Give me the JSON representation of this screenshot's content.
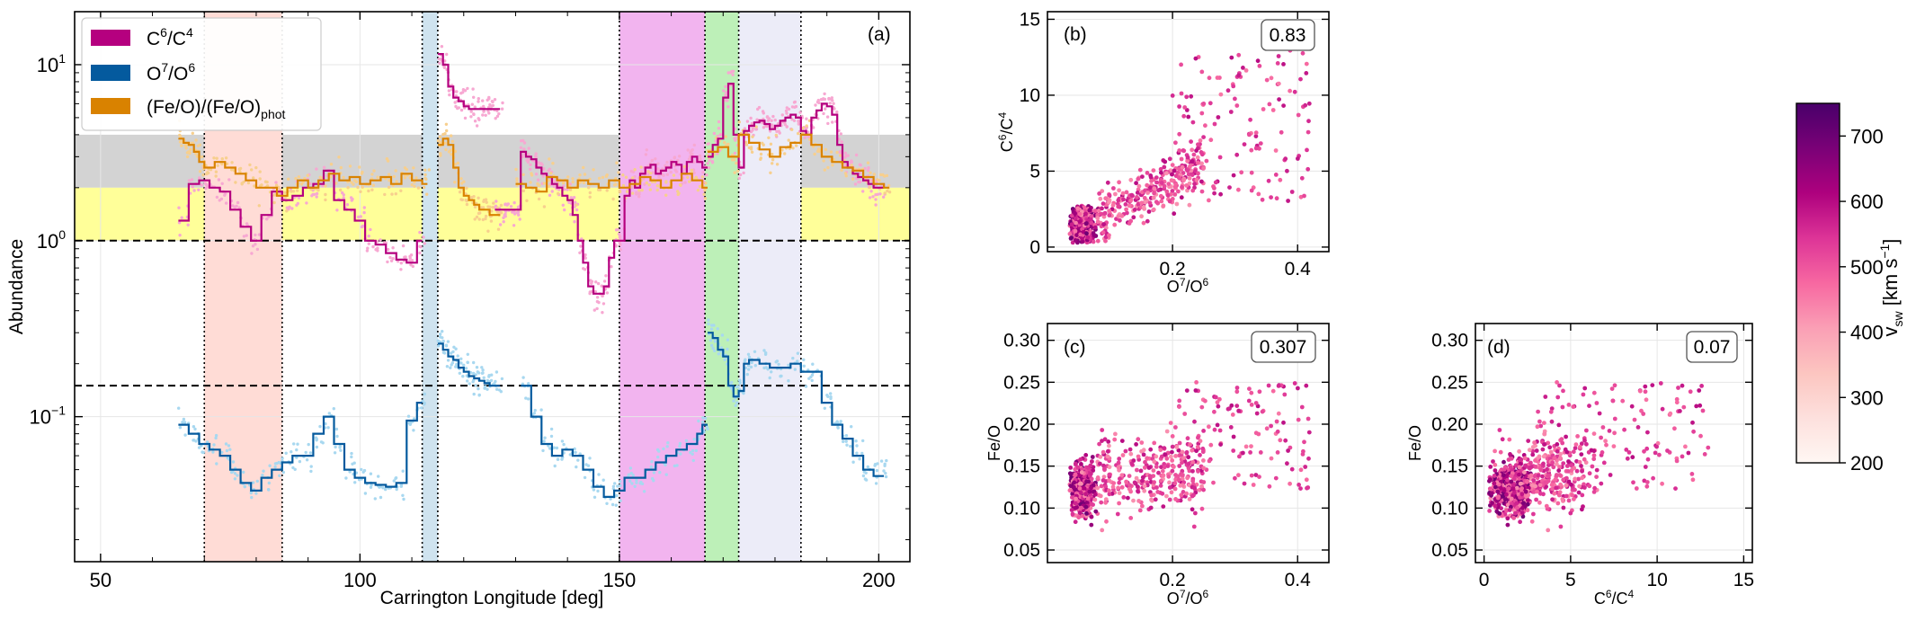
{
  "chart_data": [
    {
      "panel_label": "(a)",
      "type": "line",
      "xlabel": "Carrington Longitude [deg]",
      "ylabel": "Abundance",
      "xlim": [
        45,
        206
      ],
      "ylim": [
        0.015,
        20
      ],
      "yscale": "log",
      "xticks": [
        "50",
        "100",
        "150",
        "200"
      ],
      "yticks": [
        {
          "value": 0.1,
          "base": "10",
          "exp": "−1"
        },
        {
          "value": 1,
          "base": "10",
          "exp": "0"
        },
        {
          "value": 10,
          "base": "10",
          "exp": "1"
        }
      ],
      "legend": {
        "placement": "top-left",
        "entries": [
          {
            "base": "C",
            "sup1": "6",
            "mid": "/C",
            "sup2": "4",
            "sub": "",
            "color": "#b5007f"
          },
          {
            "base": "O",
            "sup1": "7",
            "mid": "/O",
            "sup2": "6",
            "sub": "",
            "color": "#045a9e"
          },
          {
            "base": "(Fe/O)/(Fe/O)",
            "sup1": "",
            "mid": "",
            "sup2": "",
            "sub": "phot",
            "color": "#d98200"
          }
        ]
      },
      "hbands": [
        {
          "y0": 2,
          "y1": 4,
          "color": "#d3d3d3"
        },
        {
          "y0": 1,
          "y1": 2,
          "color": "#ffff99"
        }
      ],
      "hlines": [
        1,
        0.15
      ],
      "vbands": [
        {
          "x0": 70,
          "x1": 85,
          "color": "#ffdcd6"
        },
        {
          "x0": 112,
          "x1": 115,
          "color": "#cfe3ef"
        },
        {
          "x0": 150,
          "x1": 166.5,
          "color": "#f2b4ef"
        },
        {
          "x0": 166.5,
          "x1": 173,
          "color": "#bdf0b8"
        },
        {
          "x0": 173,
          "x1": 185,
          "color": "#ececf8"
        }
      ],
      "vlines": [
        70,
        85,
        112,
        115,
        150,
        166.5,
        173,
        185
      ],
      "series": [
        {
          "name": "C6/C4",
          "color": "#b5007f",
          "scatter_color": "#f7a8d2",
          "segments": [
            {
              "x": [
                65,
                67,
                69,
                71,
                73,
                75,
                77,
                79,
                81,
                83,
                85,
                87,
                89,
                91,
                93,
                95,
                97,
                99,
                101,
                103,
                105,
                107,
                109,
                111
              ],
              "y": [
                1.3,
                2.1,
                2.2,
                2.0,
                1.9,
                1.5,
                1.2,
                1.0,
                1.4,
                1.9,
                1.7,
                1.8,
                2.0,
                2.1,
                2.5,
                1.7,
                1.5,
                1.3,
                1.0,
                0.95,
                0.85,
                0.78,
                0.75,
                1.0
              ]
            },
            {
              "x": [
                115,
                116,
                117,
                118,
                119,
                120,
                121,
                122,
                123,
                124,
                125,
                126
              ],
              "y": [
                11.5,
                10.0,
                7.5,
                6.5,
                6.2,
                5.8,
                5.6,
                5.6,
                5.6,
                5.6,
                5.6,
                5.6
              ]
            },
            {
              "x": [
                126,
                127,
                128,
                129,
                130,
                131,
                132,
                133,
                134,
                135,
                136,
                137,
                138,
                139,
                140,
                141,
                142,
                143,
                144,
                145,
                146,
                147,
                148,
                149,
                150,
                151,
                152,
                153,
                154,
                155,
                156,
                157,
                158,
                159,
                160,
                161,
                162,
                163,
                164,
                165,
                166
              ],
              "y": [
                1.5,
                1.5,
                1.5,
                1.5,
                1.5,
                3.2,
                3.0,
                2.9,
                2.6,
                2.4,
                2.3,
                2.1,
                2.0,
                1.8,
                1.7,
                1.4,
                1.0,
                0.75,
                0.55,
                0.5,
                0.5,
                0.55,
                0.8,
                1.0,
                1.0,
                1.8,
                2.2,
                2.0,
                2.4,
                2.6,
                2.7,
                2.4,
                2.5,
                2.6,
                2.8,
                2.7,
                2.4,
                2.8,
                3.0,
                2.8,
                2.6
              ]
            },
            {
              "x": [
                167,
                168,
                169,
                170,
                171,
                172,
                173,
                174,
                175,
                176,
                177,
                178,
                179,
                180,
                181,
                182,
                183,
                184,
                185,
                186,
                187,
                188,
                189,
                190,
                191,
                192,
                193,
                194,
                195,
                196,
                197,
                198,
                199,
                200
              ],
              "y": [
                3.0,
                3.5,
                3.8,
                6.5,
                7.8,
                4.0,
                2.6,
                4.2,
                4.5,
                4.7,
                4.8,
                4.6,
                4.3,
                4.5,
                4.8,
                5.0,
                5.2,
                5.0,
                4.2,
                4.0,
                5.0,
                5.5,
                6.0,
                5.8,
                5.2,
                3.5,
                2.8,
                2.6,
                2.4,
                2.3,
                2.2,
                2.1,
                2.0,
                2.0
              ]
            }
          ]
        },
        {
          "name": "Fe/O",
          "color": "#d98200",
          "scatter_color": "#f7cf8e",
          "segments": [
            {
              "x": [
                65,
                66,
                67,
                68,
                69,
                70,
                72,
                74,
                76,
                78,
                80,
                82,
                84,
                86,
                88,
                90,
                92,
                94,
                96,
                98,
                100,
                102,
                104,
                106,
                108,
                110,
                112
              ],
              "y": [
                3.8,
                3.6,
                3.5,
                3.2,
                2.8,
                2.6,
                2.8,
                2.6,
                2.4,
                2.2,
                2.0,
                2.0,
                1.8,
                2.0,
                2.2,
                2.0,
                2.2,
                2.4,
                2.2,
                2.3,
                2.1,
                2.2,
                2.3,
                2.1,
                2.4,
                2.2,
                2.1
              ]
            },
            {
              "x": [
                115,
                116,
                117,
                118,
                119,
                120,
                121,
                122,
                123,
                124,
                125,
                126
              ],
              "y": [
                3.5,
                3.8,
                3.5,
                2.6,
                2.0,
                1.8,
                1.7,
                1.6,
                1.5,
                1.5,
                1.4,
                1.4
              ]
            },
            {
              "x": [
                130,
                132,
                134,
                136,
                138,
                140,
                142,
                144,
                146,
                148,
                150,
                152,
                154,
                156,
                158,
                160,
                162,
                164,
                166
              ],
              "y": [
                2.1,
                2.0,
                1.9,
                2.3,
                2.2,
                2.0,
                2.2,
                2.1,
                2.0,
                2.2,
                2.0,
                2.1,
                2.3,
                2.2,
                2.0,
                2.2,
                2.4,
                2.2,
                2.0
              ]
            },
            {
              "x": [
                167,
                169,
                171,
                173,
                175,
                177,
                179,
                181,
                183,
                185,
                187,
                189,
                191,
                193,
                195,
                197,
                199,
                201
              ],
              "y": [
                3.2,
                3.4,
                3.0,
                4.0,
                3.6,
                3.3,
                3.0,
                3.4,
                3.6,
                4.0,
                3.5,
                3.0,
                2.8,
                2.6,
                2.5,
                2.3,
                2.1,
                2.0
              ]
            }
          ]
        },
        {
          "name": "O7/O6",
          "color": "#045a9e",
          "scatter_color": "#a8d8f0",
          "segments": [
            {
              "x": [
                65,
                67,
                69,
                71,
                73,
                75,
                77,
                79,
                81,
                83,
                85,
                87,
                89,
                91,
                93,
                95,
                97,
                99,
                101,
                103,
                105,
                107,
                109,
                111
              ],
              "y": [
                0.09,
                0.08,
                0.07,
                0.065,
                0.06,
                0.05,
                0.042,
                0.038,
                0.045,
                0.05,
                0.055,
                0.06,
                0.06,
                0.08,
                0.1,
                0.07,
                0.05,
                0.045,
                0.042,
                0.041,
                0.04,
                0.042,
                0.095,
                0.12
              ]
            },
            {
              "x": [
                115,
                116,
                117,
                118,
                119,
                120,
                121,
                122,
                123,
                124,
                125,
                126
              ],
              "y": [
                0.26,
                0.24,
                0.22,
                0.21,
                0.19,
                0.18,
                0.17,
                0.165,
                0.16,
                0.155,
                0.15,
                0.15
              ]
            },
            {
              "x": [
                131,
                133,
                135,
                137,
                139,
                141,
                143,
                145,
                147,
                149,
                151,
                153,
                155,
                157,
                159,
                161,
                163,
                165,
                166
              ],
              "y": [
                0.15,
                0.1,
                0.07,
                0.06,
                0.065,
                0.06,
                0.05,
                0.04,
                0.035,
                0.038,
                0.045,
                0.045,
                0.05,
                0.055,
                0.06,
                0.065,
                0.07,
                0.08,
                0.09
              ]
            },
            {
              "x": [
                167,
                168,
                169,
                170,
                171,
                172,
                173,
                174,
                175,
                177,
                179,
                181,
                183,
                185,
                187,
                189,
                191,
                193,
                195,
                197,
                199,
                200
              ],
              "y": [
                0.3,
                0.28,
                0.24,
                0.22,
                0.15,
                0.13,
                0.14,
                0.2,
                0.21,
                0.2,
                0.19,
                0.19,
                0.2,
                0.18,
                0.18,
                0.12,
                0.09,
                0.075,
                0.06,
                0.05,
                0.046,
                0.046
              ]
            }
          ]
        }
      ]
    },
    {
      "panel_label": "(b)",
      "type": "scatter",
      "xlabel": "O7/O6",
      "xlabel_base": "O",
      "xlabel_sup1": "7",
      "xlabel_mid": "/O",
      "xlabel_sup2": "6",
      "ylabel_base": "C",
      "ylabel_sup1": "6",
      "ylabel_mid": "/C",
      "ylabel_sup2": "4",
      "xlim": [
        0.0,
        0.45
      ],
      "ylim": [
        -0.3,
        15.5
      ],
      "xticks": [
        0.2,
        0.4
      ],
      "xtick_labels": [
        "0.2",
        "0.4"
      ],
      "yticks": [
        0,
        5,
        10,
        15
      ],
      "ytick_labels": [
        "0",
        "5",
        "10",
        "15"
      ],
      "correlation": "0.83",
      "points_x_variable": "O7/O6",
      "points_y_variable": "C6/C4"
    },
    {
      "panel_label": "(c)",
      "type": "scatter",
      "xlabel": "O7/O6",
      "xlabel_base": "O",
      "xlabel_sup1": "7",
      "xlabel_mid": "/O",
      "xlabel_sup2": "6",
      "ylabel": "Fe/O",
      "xlim": [
        0.0,
        0.45
      ],
      "ylim": [
        0.035,
        0.32
      ],
      "xticks": [
        0.2,
        0.4
      ],
      "xtick_labels": [
        "0.2",
        "0.4"
      ],
      "yticks": [
        0.05,
        0.1,
        0.15,
        0.2,
        0.25,
        0.3
      ],
      "ytick_labels": [
        "0.05",
        "0.10",
        "0.15",
        "0.20",
        "0.25",
        "0.30"
      ],
      "correlation": "0.307"
    },
    {
      "panel_label": "(d)",
      "type": "scatter",
      "xlabel": "C6/C4",
      "xlabel_base": "C",
      "xlabel_sup1": "6",
      "xlabel_mid": "/C",
      "xlabel_sup2": "4",
      "ylabel": "Fe/O",
      "xlim": [
        -0.5,
        15.5
      ],
      "ylim": [
        0.035,
        0.32
      ],
      "xticks": [
        0,
        5,
        10,
        15
      ],
      "xtick_labels": [
        "0",
        "5",
        "10",
        "15"
      ],
      "yticks": [
        0.05,
        0.1,
        0.15,
        0.2,
        0.25,
        0.3
      ],
      "ytick_labels": [
        "0.05",
        "0.10",
        "0.15",
        "0.20",
        "0.25",
        "0.30"
      ],
      "correlation": "0.07"
    },
    {
      "type": "colorbar",
      "label_v": "v",
      "label_sub": "sw",
      "label_unit": " [km s",
      "label_exp": "−1",
      "label_end": "]",
      "range": [
        200,
        750
      ],
      "ticks": [
        200,
        300,
        400,
        500,
        600,
        700
      ],
      "colors": [
        "#fff7f3",
        "#fde0dd",
        "#fcc5c0",
        "#fa9fb5",
        "#f768a1",
        "#dd3497",
        "#ae017e",
        "#7a0177",
        "#49006a"
      ]
    }
  ]
}
